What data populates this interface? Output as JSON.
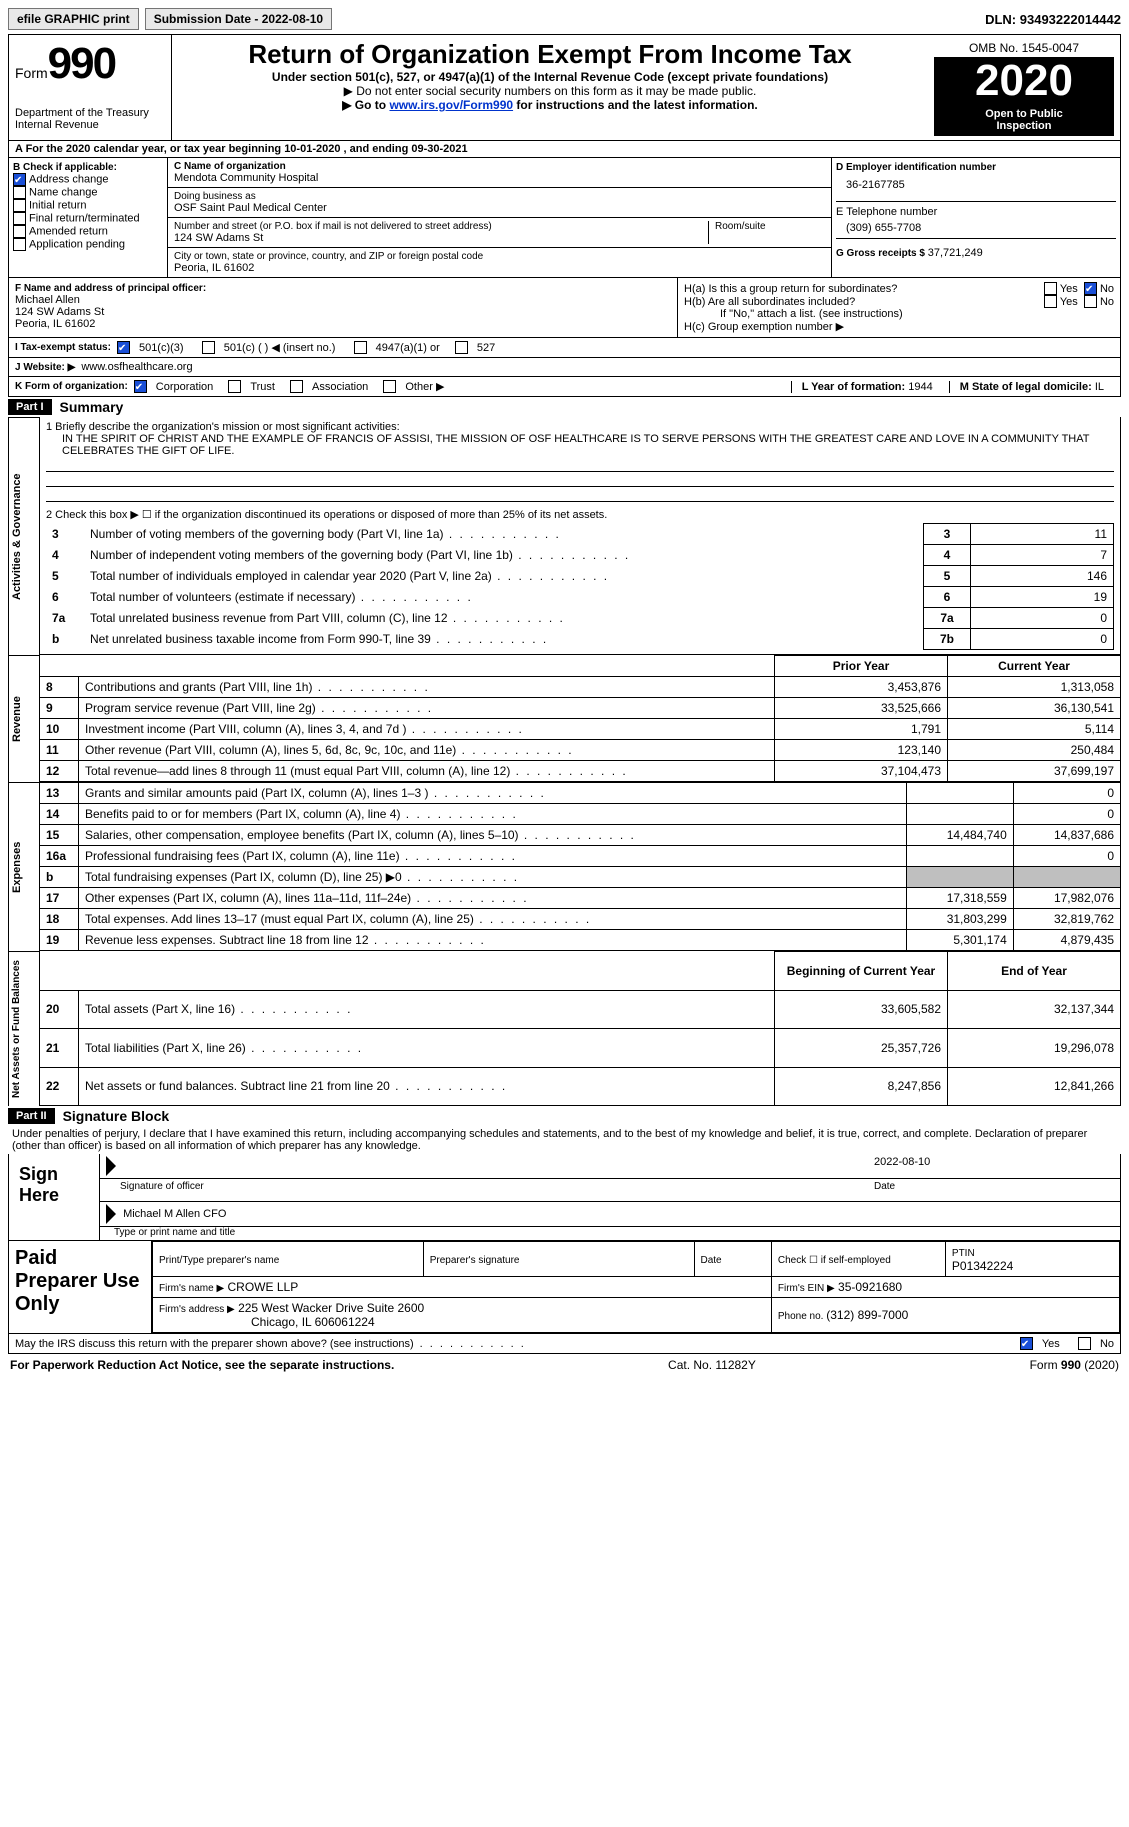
{
  "topbar": {
    "efile": "efile GRAPHIC print",
    "submission_label": "Submission Date - ",
    "submission_date": "2022-08-10",
    "dln_label": "DLN: ",
    "dln": "93493222014442"
  },
  "header": {
    "form_label": "Form",
    "form_num": "990",
    "dept1": "Department of the Treasury",
    "dept2": "Internal Revenue",
    "title": "Return of Organization Exempt From Income Tax",
    "sub1": "Under section 501(c), 527, or 4947(a)(1) of the Internal Revenue Code (except private foundations)",
    "sub2": "▶ Do not enter social security numbers on this form as it may be made public.",
    "sub3_pre": "▶ Go to ",
    "sub3_link": "www.irs.gov/Form990",
    "sub3_post": " for instructions and the latest information.",
    "omb": "OMB No. 1545-0047",
    "year": "2020",
    "otp1": "Open to Public",
    "otp2": "Inspection"
  },
  "period": {
    "text": "A For the 2020 calendar year, or tax year beginning 10-01-2020    , and ending 09-30-2021"
  },
  "boxB": {
    "label": "B Check if applicable:",
    "items": [
      {
        "label": "Address change",
        "checked": true
      },
      {
        "label": "Name change",
        "checked": false
      },
      {
        "label": "Initial return",
        "checked": false
      },
      {
        "label": "Final return/terminated",
        "checked": false
      },
      {
        "label": "Amended return",
        "checked": false
      },
      {
        "label": "Application pending",
        "checked": false
      }
    ]
  },
  "boxC": {
    "name_label": "C Name of organization",
    "name": "Mendota Community Hospital",
    "dba_label": "Doing business as",
    "dba": "OSF Saint Paul Medical Center",
    "street_label": "Number and street (or P.O. box if mail is not delivered to street address)",
    "room_label": "Room/suite",
    "street": "124 SW Adams St",
    "city_label": "City or town, state or province, country, and ZIP or foreign postal code",
    "city": "Peoria, IL  61602"
  },
  "boxD": {
    "ein_label": "D Employer identification number",
    "ein": "36-2167785",
    "phone_label": "E Telephone number",
    "phone": "(309) 655-7708",
    "gross_label": "G Gross receipts $ ",
    "gross": "37,721,249"
  },
  "boxF": {
    "label": "F  Name and address of principal officer:",
    "name": "Michael Allen",
    "street": "124 SW Adams St",
    "city": "Peoria, IL  61602"
  },
  "boxH": {
    "ha": "H(a)  Is this a group return for subordinates?",
    "hb": "H(b)  Are all subordinates included?",
    "hb_note": "If \"No,\" attach a list. (see instructions)",
    "hc": "H(c)  Group exemption number ▶",
    "yes": "Yes",
    "no": "No",
    "ha_no_checked": true
  },
  "status": {
    "label": "I    Tax-exempt status:",
    "c3": "501(c)(3)",
    "c_other": "501(c) (   ) ◀ (insert no.)",
    "a4947": "4947(a)(1) or",
    "s527": "527",
    "c3_checked": true
  },
  "website": {
    "label": "J   Website: ▶",
    "value": "www.osfhealthcare.org"
  },
  "k": {
    "label": "K Form of organization:",
    "corp": "Corporation",
    "trust": "Trust",
    "assoc": "Association",
    "other": "Other ▶",
    "corp_checked": true
  },
  "lm": {
    "l_label": "L Year of formation: ",
    "l": "1944",
    "m_label": "M State of legal domicile: ",
    "m": "IL"
  },
  "part1": {
    "num": "Part I",
    "title": "Summary",
    "mission_label": "1  Briefly describe the organization's mission or most significant activities:",
    "mission": "IN THE SPIRIT OF CHRIST AND THE EXAMPLE OF FRANCIS OF ASSISI, THE MISSION OF OSF HEALTHCARE IS TO SERVE PERSONS WITH THE GREATEST CARE AND LOVE IN A COMMUNITY THAT CELEBRATES THE GIFT OF LIFE.",
    "l2": "2    Check this box ▶ ☐  if the organization discontinued its operations or disposed of more than 25% of its net assets.",
    "gov_rows": [
      {
        "n": "3",
        "txt": "Number of voting members of the governing body (Part VI, line 1a)",
        "box": "3",
        "val": "11"
      },
      {
        "n": "4",
        "txt": "Number of independent voting members of the governing body (Part VI, line 1b)",
        "box": "4",
        "val": "7"
      },
      {
        "n": "5",
        "txt": "Total number of individuals employed in calendar year 2020 (Part V, line 2a)",
        "box": "5",
        "val": "146"
      },
      {
        "n": "6",
        "txt": "Total number of volunteers (estimate if necessary)",
        "box": "6",
        "val": "19"
      },
      {
        "n": "7a",
        "txt": "Total unrelated business revenue from Part VIII, column (C), line 12",
        "box": "7a",
        "val": "0"
      },
      {
        "n": "b",
        "txt": "Net unrelated business taxable income from Form 990-T, line 39",
        "box": "7b",
        "val": "0"
      }
    ],
    "colhdr_prior": "Prior Year",
    "colhdr_curr": "Current Year",
    "rev_rows": [
      {
        "n": "8",
        "txt": "Contributions and grants (Part VIII, line 1h)",
        "p": "3,453,876",
        "c": "1,313,058"
      },
      {
        "n": "9",
        "txt": "Program service revenue (Part VIII, line 2g)",
        "p": "33,525,666",
        "c": "36,130,541"
      },
      {
        "n": "10",
        "txt": "Investment income (Part VIII, column (A), lines 3, 4, and 7d )",
        "p": "1,791",
        "c": "5,114"
      },
      {
        "n": "11",
        "txt": "Other revenue (Part VIII, column (A), lines 5, 6d, 8c, 9c, 10c, and 11e)",
        "p": "123,140",
        "c": "250,484"
      },
      {
        "n": "12",
        "txt": "Total revenue—add lines 8 through 11 (must equal Part VIII, column (A), line 12)",
        "p": "37,104,473",
        "c": "37,699,197"
      }
    ],
    "exp_rows": [
      {
        "n": "13",
        "txt": "Grants and similar amounts paid (Part IX, column (A), lines 1–3 )",
        "p": "",
        "c": "0"
      },
      {
        "n": "14",
        "txt": "Benefits paid to or for members (Part IX, column (A), line 4)",
        "p": "",
        "c": "0"
      },
      {
        "n": "15",
        "txt": "Salaries, other compensation, employee benefits (Part IX, column (A), lines 5–10)",
        "p": "14,484,740",
        "c": "14,837,686"
      },
      {
        "n": "16a",
        "txt": "Professional fundraising fees (Part IX, column (A), line 11e)",
        "p": "",
        "c": "0"
      },
      {
        "n": "b",
        "txt": "Total fundraising expenses (Part IX, column (D), line 25) ▶0",
        "p": "SHADE",
        "c": "SHADE"
      },
      {
        "n": "17",
        "txt": "Other expenses (Part IX, column (A), lines 11a–11d, 11f–24e)",
        "p": "17,318,559",
        "c": "17,982,076"
      },
      {
        "n": "18",
        "txt": "Total expenses. Add lines 13–17 (must equal Part IX, column (A), line 25)",
        "p": "31,803,299",
        "c": "32,819,762"
      },
      {
        "n": "19",
        "txt": "Revenue less expenses. Subtract line 18 from line 12",
        "p": "5,301,174",
        "c": "4,879,435"
      }
    ],
    "na_hdr_b": "Beginning of Current Year",
    "na_hdr_e": "End of Year",
    "na_rows": [
      {
        "n": "20",
        "txt": "Total assets (Part X, line 16)",
        "p": "33,605,582",
        "c": "32,137,344"
      },
      {
        "n": "21",
        "txt": "Total liabilities (Part X, line 26)",
        "p": "25,357,726",
        "c": "19,296,078"
      },
      {
        "n": "22",
        "txt": "Net assets or fund balances. Subtract line 21 from line 20",
        "p": "8,247,856",
        "c": "12,841,266"
      }
    ]
  },
  "part2": {
    "num": "Part II",
    "title": "Signature Block",
    "decl": "Under penalties of perjury, I declare that I have examined this return, including accompanying schedules and statements, and to the best of my knowledge and belief, it is true, correct, and complete. Declaration of preparer (other than officer) is based on all information of which preparer has any knowledge.",
    "sign_here": "Sign Here",
    "sig_officer": "Signature of officer",
    "sig_date": "Date",
    "sig_date_val": "2022-08-10",
    "officer": "Michael M Allen  CFO",
    "officer_lbl": "Type or print name and title",
    "paid": "Paid Preparer Use Only",
    "p_name": "Print/Type preparer's name",
    "p_sig": "Preparer's signature",
    "p_date": "Date",
    "p_check": "Check ☐ if self-employed",
    "ptin_label": "PTIN",
    "ptin": "P01342224",
    "firm_name_label": "Firm's name    ▶",
    "firm_name": "CROWE LLP",
    "firm_ein_label": "Firm's EIN ▶",
    "firm_ein": "35-0921680",
    "firm_addr_label": "Firm's address ▶",
    "firm_addr1": "225 West Wacker Drive Suite 2600",
    "firm_addr2": "Chicago, IL  606061224",
    "firm_phone_label": "Phone no. ",
    "firm_phone": "(312) 899-7000",
    "discuss": "May the IRS discuss this return with the preparer shown above? (see instructions)",
    "yes": "Yes",
    "no": "No",
    "discuss_yes": true
  },
  "footer": {
    "pra": "For Paperwork Reduction Act Notice, see the separate instructions.",
    "cat": "Cat. No. 11282Y",
    "form": "Form 990 (2020)"
  },
  "vlabels": {
    "gov": "Activities & Governance",
    "rev": "Revenue",
    "exp": "Expenses",
    "na": "Net Assets or Fund Balances"
  }
}
